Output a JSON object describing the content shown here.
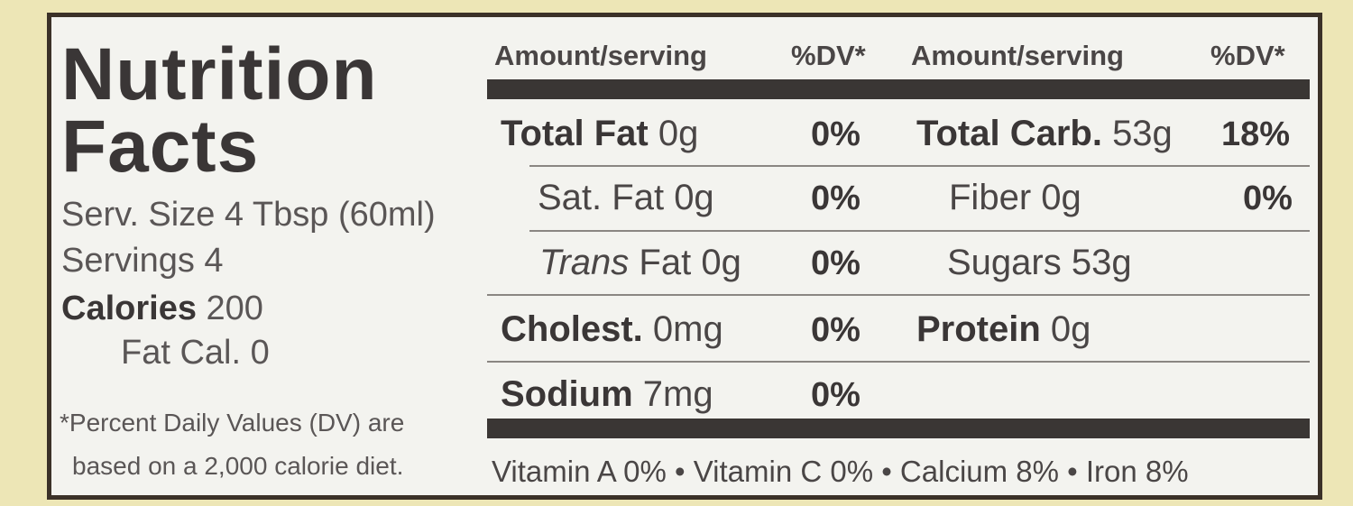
{
  "title_line1": "Nutrition",
  "title_line2": "Facts",
  "serving_size": "Serv. Size 4 Tbsp (60ml)",
  "servings": "Servings 4",
  "calories_label": "Calories",
  "calories_value": "200",
  "fat_calories": "Fat Cal. 0",
  "footnote_line1": "*Percent Daily Values (DV) are",
  "footnote_line2": "based on a 2,000 calorie diet.",
  "headers": {
    "amount_left": "Amount/serving",
    "dv_left": "%DV*",
    "amount_right": "Amount/serving",
    "dv_right": "%DV*"
  },
  "left_rows": [
    {
      "name": "Total Fat",
      "amount": "0g",
      "dv": "0%"
    },
    {
      "name": "Sat. Fat",
      "amount": "0g",
      "dv": "0%"
    },
    {
      "name": "Trans",
      "name_rest": "Fat",
      "amount": "0g",
      "dv": "0%"
    },
    {
      "name": "Cholest.",
      "amount": "0mg",
      "dv": "0%"
    },
    {
      "name": "Sodium",
      "amount": "7mg",
      "dv": "0%"
    }
  ],
  "right_rows": [
    {
      "name": "Total Carb.",
      "amount": "53g",
      "dv": "18%"
    },
    {
      "name": "Fiber",
      "amount": "0g",
      "dv": "0%"
    },
    {
      "name": "Sugars",
      "amount": "53g"
    },
    {
      "name": "Protein",
      "amount": "0g"
    }
  ],
  "vitamins": "Vitamin A 0% • Vitamin C 0% • Calcium 8% • Iron 8%"
}
